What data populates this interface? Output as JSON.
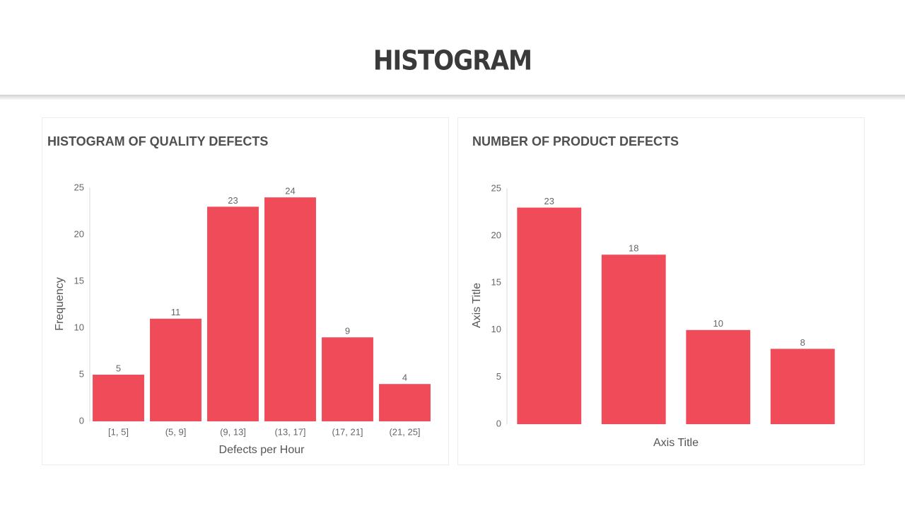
{
  "title": "HISTOGRAM",
  "chart_data": [
    {
      "type": "bar",
      "title": "HISTOGRAM OF QUALITY DEFECTS",
      "xlabel": "Defects per Hour",
      "ylabel": "Frequency",
      "categories": [
        "[1, 5]",
        "(5, 9]",
        "(9, 13]",
        "(13, 17]",
        "(17, 21]",
        "(21, 25]"
      ],
      "values": [
        5,
        11,
        23,
        24,
        9,
        4
      ],
      "color": "#f04b58",
      "ylim": [
        0,
        25
      ],
      "yticks": [
        0,
        5,
        10,
        15,
        20,
        25
      ],
      "grid": false
    },
    {
      "type": "bar",
      "title": "NUMBER OF PRODUCT DEFECTS",
      "xlabel": "Axis Title",
      "ylabel": "Axis Title",
      "categories": [
        null,
        null,
        null,
        null
      ],
      "values": [
        23,
        18,
        10,
        8
      ],
      "color": "#f04b58",
      "ylim": [
        0,
        25
      ],
      "yticks": [
        0,
        5,
        10,
        15,
        20,
        25
      ],
      "grid": false
    }
  ]
}
